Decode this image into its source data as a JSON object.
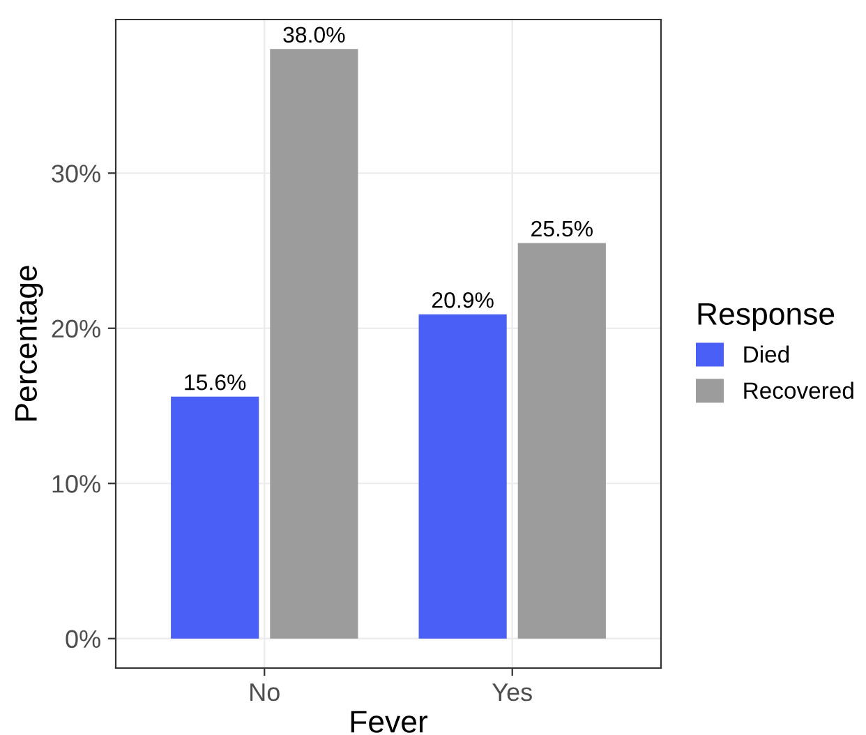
{
  "chart_data": {
    "type": "bar",
    "xlabel": "Fever",
    "ylabel": "Percentage",
    "legend_title": "Response",
    "categories": [
      "No",
      "Yes"
    ],
    "series": [
      {
        "name": "Died",
        "color": "#4a5ff5",
        "values": [
          15.6,
          20.9
        ],
        "value_labels": [
          "15.6%",
          "20.9%"
        ]
      },
      {
        "name": "Recovered",
        "color": "#9c9c9c",
        "values": [
          38.0,
          25.5
        ],
        "value_labels": [
          "38.0%",
          "25.5%"
        ]
      }
    ],
    "ylim": [
      -1.9,
      39.9
    ],
    "yticks": [
      {
        "value": 0,
        "label": "0%"
      },
      {
        "value": 10,
        "label": "10%"
      },
      {
        "value": 20,
        "label": "20%"
      },
      {
        "value": 30,
        "label": "30%"
      }
    ],
    "grid": true,
    "legend": "right"
  }
}
